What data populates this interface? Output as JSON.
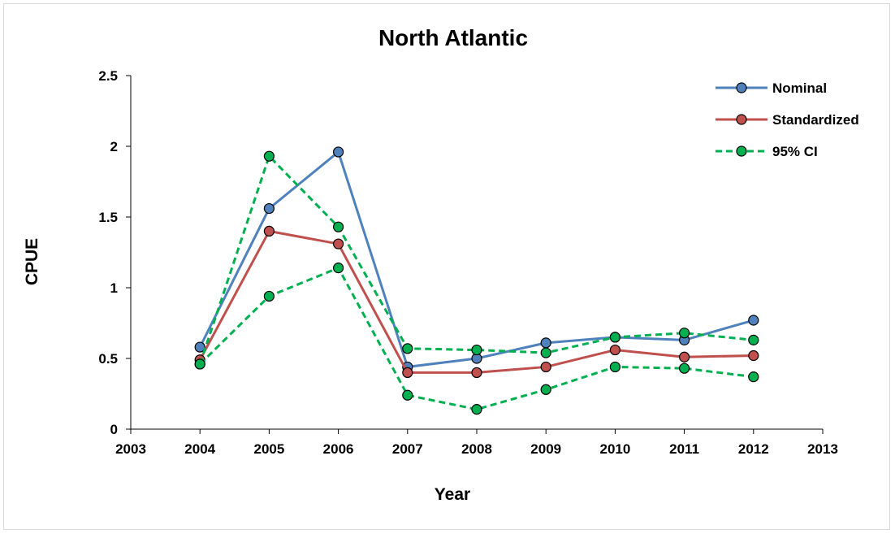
{
  "chart_data": {
    "type": "line",
    "title": "North Atlantic",
    "xlabel": "Year",
    "ylabel": "CPUE",
    "xlim": [
      2003,
      2013
    ],
    "ylim": [
      0,
      2.5
    ],
    "x_ticks": [
      "2003",
      "2004",
      "2005",
      "2006",
      "2007",
      "2008",
      "2009",
      "2010",
      "2011",
      "2012",
      "2013"
    ],
    "y_ticks": [
      "0",
      "0.5",
      "1",
      "1.5",
      "2",
      "2.5"
    ],
    "grid": false,
    "legend_position": "top-right",
    "x": [
      2004,
      2005,
      2006,
      2007,
      2008,
      2009,
      2010,
      2011,
      2012
    ],
    "series": [
      {
        "name": "Nominal",
        "color": "#4f81bd",
        "marker_fill": "#4f81bd",
        "dashed": false,
        "values": [
          0.58,
          1.56,
          1.96,
          0.44,
          0.5,
          0.61,
          0.65,
          0.63,
          0.77
        ]
      },
      {
        "name": "Standardized",
        "color": "#c0504d",
        "marker_fill": "#c0504d",
        "dashed": false,
        "values": [
          0.49,
          1.4,
          1.31,
          0.4,
          0.4,
          0.44,
          0.56,
          0.51,
          0.52
        ]
      },
      {
        "name": "95% CI",
        "color": "#00b050",
        "marker_fill": "#00b050",
        "dashed": true,
        "values": [
          0.46,
          1.93,
          1.43,
          0.57,
          0.56,
          0.54,
          0.65,
          0.68,
          0.63
        ]
      },
      {
        "name": "",
        "legend": false,
        "color": "#00b050",
        "marker_fill": "#00b050",
        "dashed": true,
        "values": [
          0.46,
          0.94,
          1.14,
          0.24,
          0.14,
          0.28,
          0.44,
          0.43,
          0.37
        ]
      }
    ]
  }
}
